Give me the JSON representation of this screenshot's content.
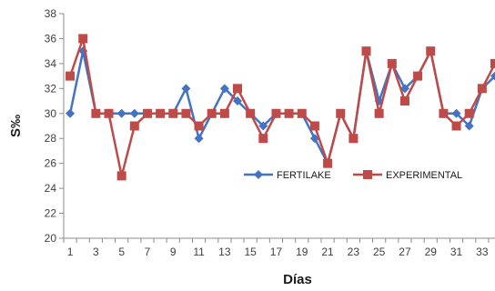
{
  "chart_data": {
    "type": "line",
    "xlabel": "Días",
    "ylabel": "S‰",
    "x": [
      1,
      2,
      3,
      4,
      5,
      6,
      7,
      8,
      9,
      10,
      11,
      12,
      13,
      14,
      15,
      16,
      17,
      18,
      19,
      20,
      21,
      22,
      23,
      24,
      25,
      26,
      27,
      28,
      29,
      30,
      31,
      32,
      33,
      34
    ],
    "x_tick_labels": [
      "1",
      "3",
      "5",
      "7",
      "9",
      "11",
      "13",
      "15",
      "17",
      "19",
      "21",
      "23",
      "25",
      "27",
      "29",
      "31",
      "33"
    ],
    "ylim": [
      20,
      38
    ],
    "y_ticks": [
      20,
      22,
      24,
      26,
      28,
      30,
      32,
      34,
      36,
      38
    ],
    "grid": false,
    "legend_position": "center-right",
    "series": [
      {
        "name": "FERTILAKE",
        "color": "#4472C4",
        "marker": "diamond",
        "values": [
          30,
          35,
          30,
          30,
          30,
          30,
          30,
          30,
          30,
          32,
          28,
          30,
          32,
          31,
          30,
          29,
          30,
          30,
          30,
          28,
          26,
          30,
          28,
          35,
          31,
          34,
          32,
          33,
          35,
          30,
          30,
          29,
          32,
          33
        ]
      },
      {
        "name": "EXPERIMENTAL",
        "color": "#BE4B48",
        "marker": "square",
        "values": [
          33,
          36,
          30,
          30,
          25,
          29,
          30,
          30,
          30,
          30,
          29,
          30,
          30,
          32,
          30,
          28,
          30,
          30,
          30,
          29,
          26,
          30,
          28,
          35,
          30,
          34,
          31,
          33,
          35,
          30,
          29,
          30,
          32,
          34
        ]
      }
    ]
  }
}
